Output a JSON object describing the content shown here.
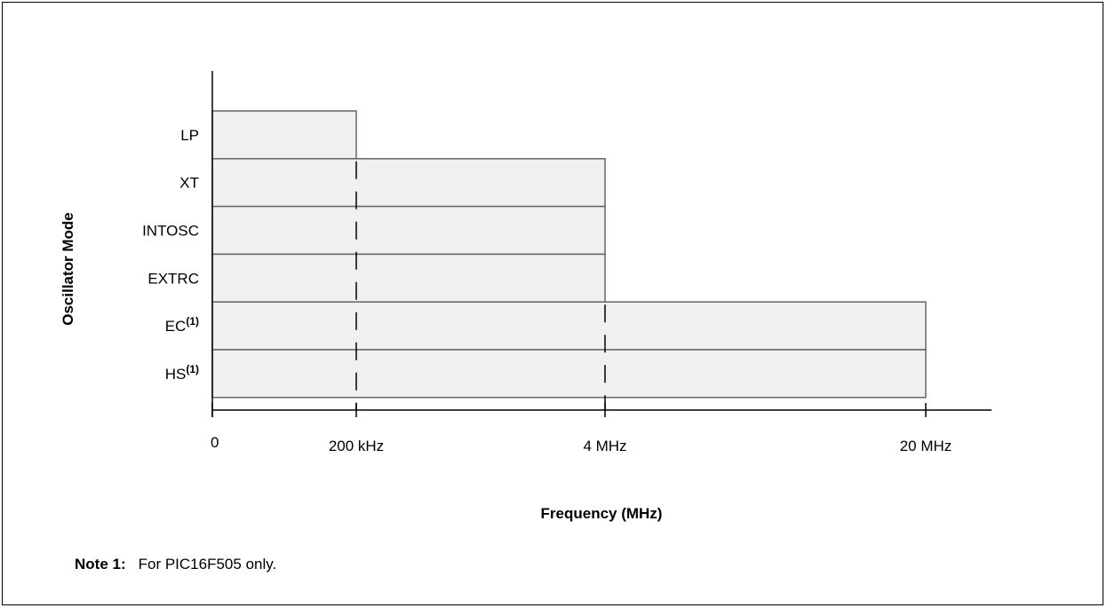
{
  "chart_data": {
    "type": "bar",
    "orientation": "horizontal",
    "ylabel": "Oscillator Mode",
    "xlabel": "Frequency (MHz)",
    "x_tick_labels": [
      "0",
      "200 kHz",
      "4 MHz",
      "20 MHz"
    ],
    "x_tick_values_mhz": [
      0,
      0.2,
      4,
      20
    ],
    "x_scale": "nonlinear (ticks at 0, 200 kHz, 4 MHz, 20 MHz)",
    "grid": false,
    "categories": [
      {
        "label": "LP",
        "superscript": ""
      },
      {
        "label": "XT",
        "superscript": ""
      },
      {
        "label": "INTOSC",
        "superscript": ""
      },
      {
        "label": "EXTRC",
        "superscript": ""
      },
      {
        "label": "EC",
        "superscript": "(1)"
      },
      {
        "label": "HS",
        "superscript": "(1)"
      }
    ],
    "values_mhz": [
      0.2,
      4,
      4,
      4,
      20,
      20
    ],
    "bar_fill": "#f0f0f0",
    "bar_stroke": "#666666"
  },
  "note": {
    "label": "Note  1:",
    "text": "For PIC16F505 only."
  }
}
